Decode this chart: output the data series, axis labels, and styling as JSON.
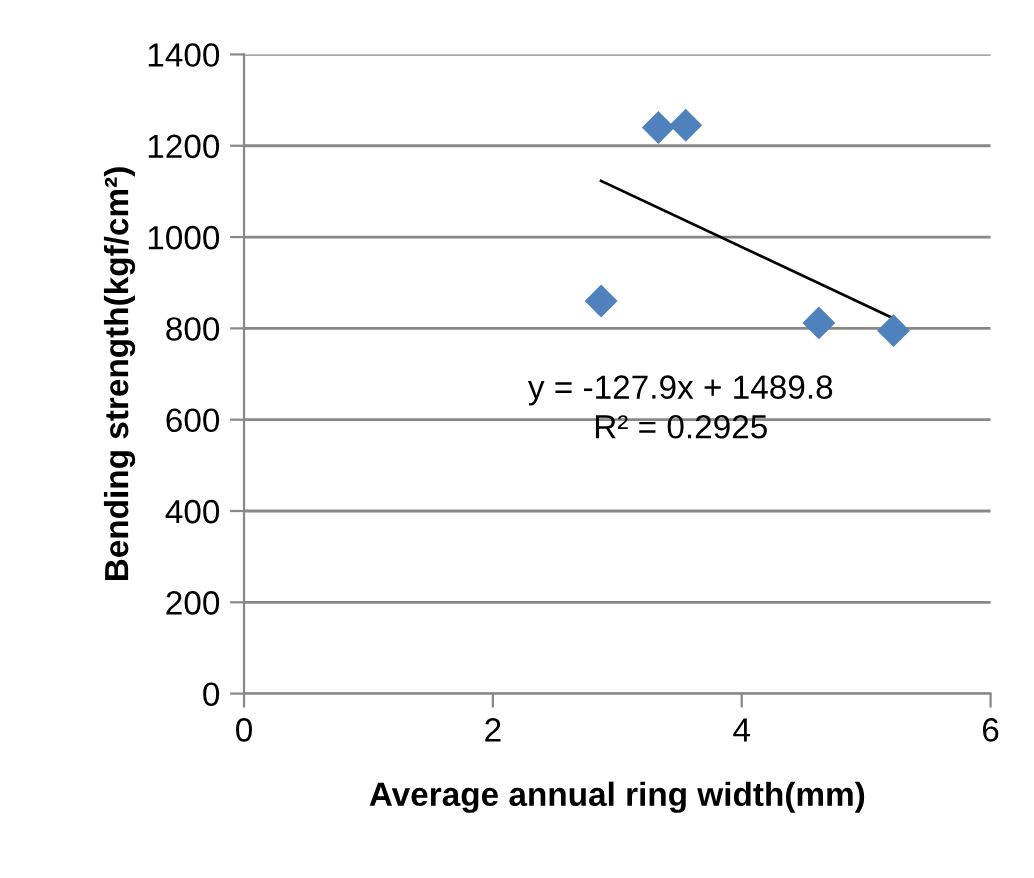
{
  "chart_data": {
    "type": "scatter",
    "xlabel": "Average annual ring width(mm)",
    "ylabel": "Bending strength(kgf/cm²)",
    "series": [
      {
        "color": "#4f81bd",
        "marker": "diamond",
        "x": [
          2.87,
          3.33,
          3.55,
          4.62,
          5.22
        ],
        "values": [
          860,
          1240,
          1245,
          812,
          795
        ]
      },
      {
        "type": "line",
        "color": "#000000",
        "marker": "none",
        "line_style": "solid",
        "x": [
          2.87,
          5.22
        ],
        "values": [
          1123,
          822
        ]
      }
    ],
    "annotations": [
      "y = -127.9x + 1489.8",
      "R² = 0.2925"
    ],
    "xlim": [
      0,
      6
    ],
    "xticks": [
      0,
      2,
      4,
      6
    ],
    "ylim": [
      0,
      1400
    ],
    "yticks": [
      0,
      200,
      400,
      600,
      800,
      1000,
      1200,
      1400
    ],
    "grid": "y",
    "legend": false
  }
}
